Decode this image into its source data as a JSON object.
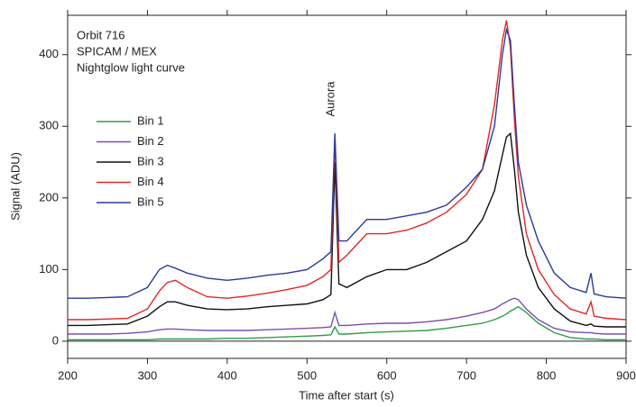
{
  "chart_data": {
    "type": "line",
    "annotations": [
      "Orbit 716",
      "SPICAM / MEX",
      "Nightglow light curve"
    ],
    "aurora_label": "Aurora",
    "xlabel": "Time after start (s)",
    "ylabel": "Signal (ADU)",
    "xlim": [
      200,
      900
    ],
    "ylim": [
      -24,
      455
    ],
    "xticks": [
      200,
      300,
      400,
      500,
      600,
      700,
      800,
      900
    ],
    "yticks": [
      0,
      100,
      200,
      300,
      400
    ],
    "x": [
      200,
      225,
      250,
      275,
      300,
      315,
      325,
      335,
      350,
      375,
      400,
      425,
      450,
      475,
      500,
      520,
      530,
      535,
      540,
      550,
      575,
      600,
      625,
      650,
      675,
      700,
      720,
      735,
      745,
      750,
      755,
      760,
      765,
      775,
      790,
      810,
      830,
      850,
      856,
      860,
      875,
      900
    ],
    "series": [
      {
        "name": "Bin 1",
        "color": "#2e9e48",
        "values": [
          2,
          2,
          2,
          2,
          2,
          3,
          3,
          3,
          3,
          3,
          4,
          4,
          5,
          6,
          7,
          8,
          9,
          20,
          10,
          10,
          12,
          13,
          14,
          15,
          18,
          22,
          25,
          30,
          35,
          38,
          42,
          45,
          48,
          40,
          25,
          12,
          5,
          3,
          3,
          3,
          2,
          2
        ]
      },
      {
        "name": "Bin 2",
        "color": "#7a4fb0",
        "values": [
          10,
          10,
          10,
          11,
          13,
          16,
          17,
          17,
          16,
          15,
          15,
          15,
          16,
          17,
          18,
          19,
          20,
          40,
          22,
          22,
          24,
          25,
          25,
          27,
          30,
          35,
          40,
          45,
          52,
          55,
          58,
          60,
          58,
          45,
          30,
          18,
          13,
          12,
          12,
          11,
          10,
          10
        ]
      },
      {
        "name": "Bin 3",
        "color": "#111111",
        "values": [
          22,
          22,
          23,
          24,
          35,
          48,
          55,
          55,
          50,
          45,
          44,
          45,
          48,
          50,
          52,
          58,
          65,
          250,
          80,
          75,
          90,
          100,
          100,
          110,
          125,
          140,
          170,
          210,
          260,
          285,
          290,
          240,
          180,
          120,
          75,
          45,
          28,
          22,
          24,
          21,
          20,
          20
        ]
      },
      {
        "name": "Bin 4",
        "color": "#e02828",
        "values": [
          30,
          30,
          31,
          32,
          45,
          70,
          82,
          85,
          75,
          62,
          60,
          63,
          67,
          72,
          78,
          90,
          100,
          285,
          110,
          120,
          150,
          150,
          155,
          165,
          180,
          205,
          240,
          330,
          420,
          448,
          410,
          310,
          230,
          150,
          100,
          65,
          45,
          38,
          55,
          35,
          32,
          30
        ]
      },
      {
        "name": "Bin 5",
        "color": "#2b3a9a",
        "values": [
          60,
          60,
          61,
          62,
          75,
          100,
          106,
          102,
          95,
          88,
          85,
          88,
          92,
          95,
          100,
          115,
          125,
          290,
          140,
          140,
          170,
          170,
          175,
          180,
          190,
          215,
          240,
          300,
          400,
          435,
          420,
          330,
          250,
          190,
          140,
          95,
          75,
          68,
          95,
          66,
          62,
          60
        ]
      }
    ]
  }
}
